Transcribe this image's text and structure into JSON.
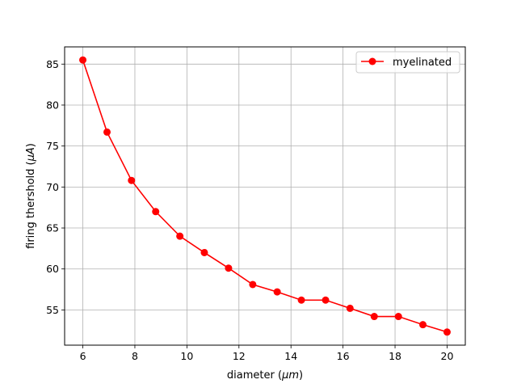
{
  "chart_data": {
    "type": "line",
    "title": "",
    "xlabel": "diameter (μm)",
    "xlabel_parts": {
      "prefix": "diameter (",
      "unit": "μm",
      "suffix": ")"
    },
    "ylabel": "firing thershold (μA)",
    "ylabel_parts": {
      "prefix": "firing thershold (",
      "unit": "μA",
      "suffix": ")"
    },
    "xlim": [
      5.3,
      20.7
    ],
    "ylim": [
      50.7,
      87.1
    ],
    "xticks": [
      6,
      8,
      10,
      12,
      14,
      16,
      18,
      20
    ],
    "yticks": [
      55,
      60,
      65,
      70,
      75,
      80,
      85
    ],
    "grid": true,
    "legend_position": "top-right",
    "series": [
      {
        "name": "myelinated",
        "color": "#ff0000",
        "marker": "circle",
        "x": [
          6.0,
          6.93,
          7.87,
          8.8,
          9.73,
          10.67,
          11.6,
          12.53,
          13.47,
          14.4,
          15.33,
          16.27,
          17.2,
          18.13,
          19.07,
          20.0
        ],
        "y": [
          85.5,
          76.7,
          70.8,
          67.0,
          64.0,
          62.0,
          60.1,
          58.1,
          57.2,
          56.2,
          56.2,
          55.2,
          54.2,
          54.2,
          53.2,
          52.3
        ]
      }
    ]
  }
}
